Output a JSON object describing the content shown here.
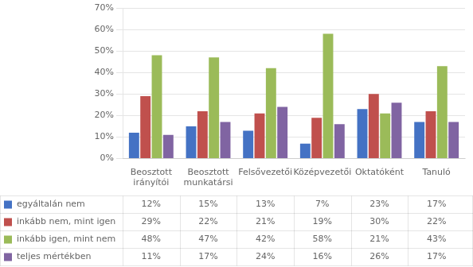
{
  "chart_data": {
    "type": "bar",
    "categories": [
      "Beosztott\nirányítói",
      "Beosztott\nmunkatársi",
      "Felsővezetői",
      "Középvezetői",
      "Oktatóként",
      "Tanuló"
    ],
    "series": [
      {
        "name": "egyáltalán nem",
        "color": "#4472C4",
        "values": [
          12,
          15,
          13,
          7,
          23,
          17
        ],
        "value_labels": [
          "12%",
          "15%",
          "13%",
          "7%",
          "23%",
          "17%"
        ]
      },
      {
        "name": "inkább nem, mint igen",
        "color": "#C0504D",
        "values": [
          29,
          22,
          21,
          19,
          30,
          22
        ],
        "value_labels": [
          "29%",
          "22%",
          "21%",
          "19%",
          "30%",
          "22%"
        ]
      },
      {
        "name": "inkább igen, mint nem",
        "color": "#9BBB59",
        "values": [
          48,
          47,
          42,
          58,
          21,
          43
        ],
        "value_labels": [
          "48%",
          "47%",
          "42%",
          "58%",
          "21%",
          "43%"
        ]
      },
      {
        "name": "teljes mértékben",
        "color": "#8064A2",
        "values": [
          11,
          17,
          24,
          16,
          26,
          17
        ],
        "value_labels": [
          "11%",
          "17%",
          "24%",
          "16%",
          "26%",
          "17%"
        ]
      }
    ],
    "ylim": [
      0,
      70
    ],
    "yticks": [
      {
        "value": 0,
        "label": "0%"
      },
      {
        "value": 10,
        "label": "10%"
      },
      {
        "value": 20,
        "label": "20%"
      },
      {
        "value": 30,
        "label": "30%"
      },
      {
        "value": 40,
        "label": "40%"
      },
      {
        "value": 50,
        "label": "50%"
      },
      {
        "value": 60,
        "label": "60%"
      },
      {
        "value": 70,
        "label": "70%"
      }
    ],
    "grid": true,
    "data_labels": true
  }
}
